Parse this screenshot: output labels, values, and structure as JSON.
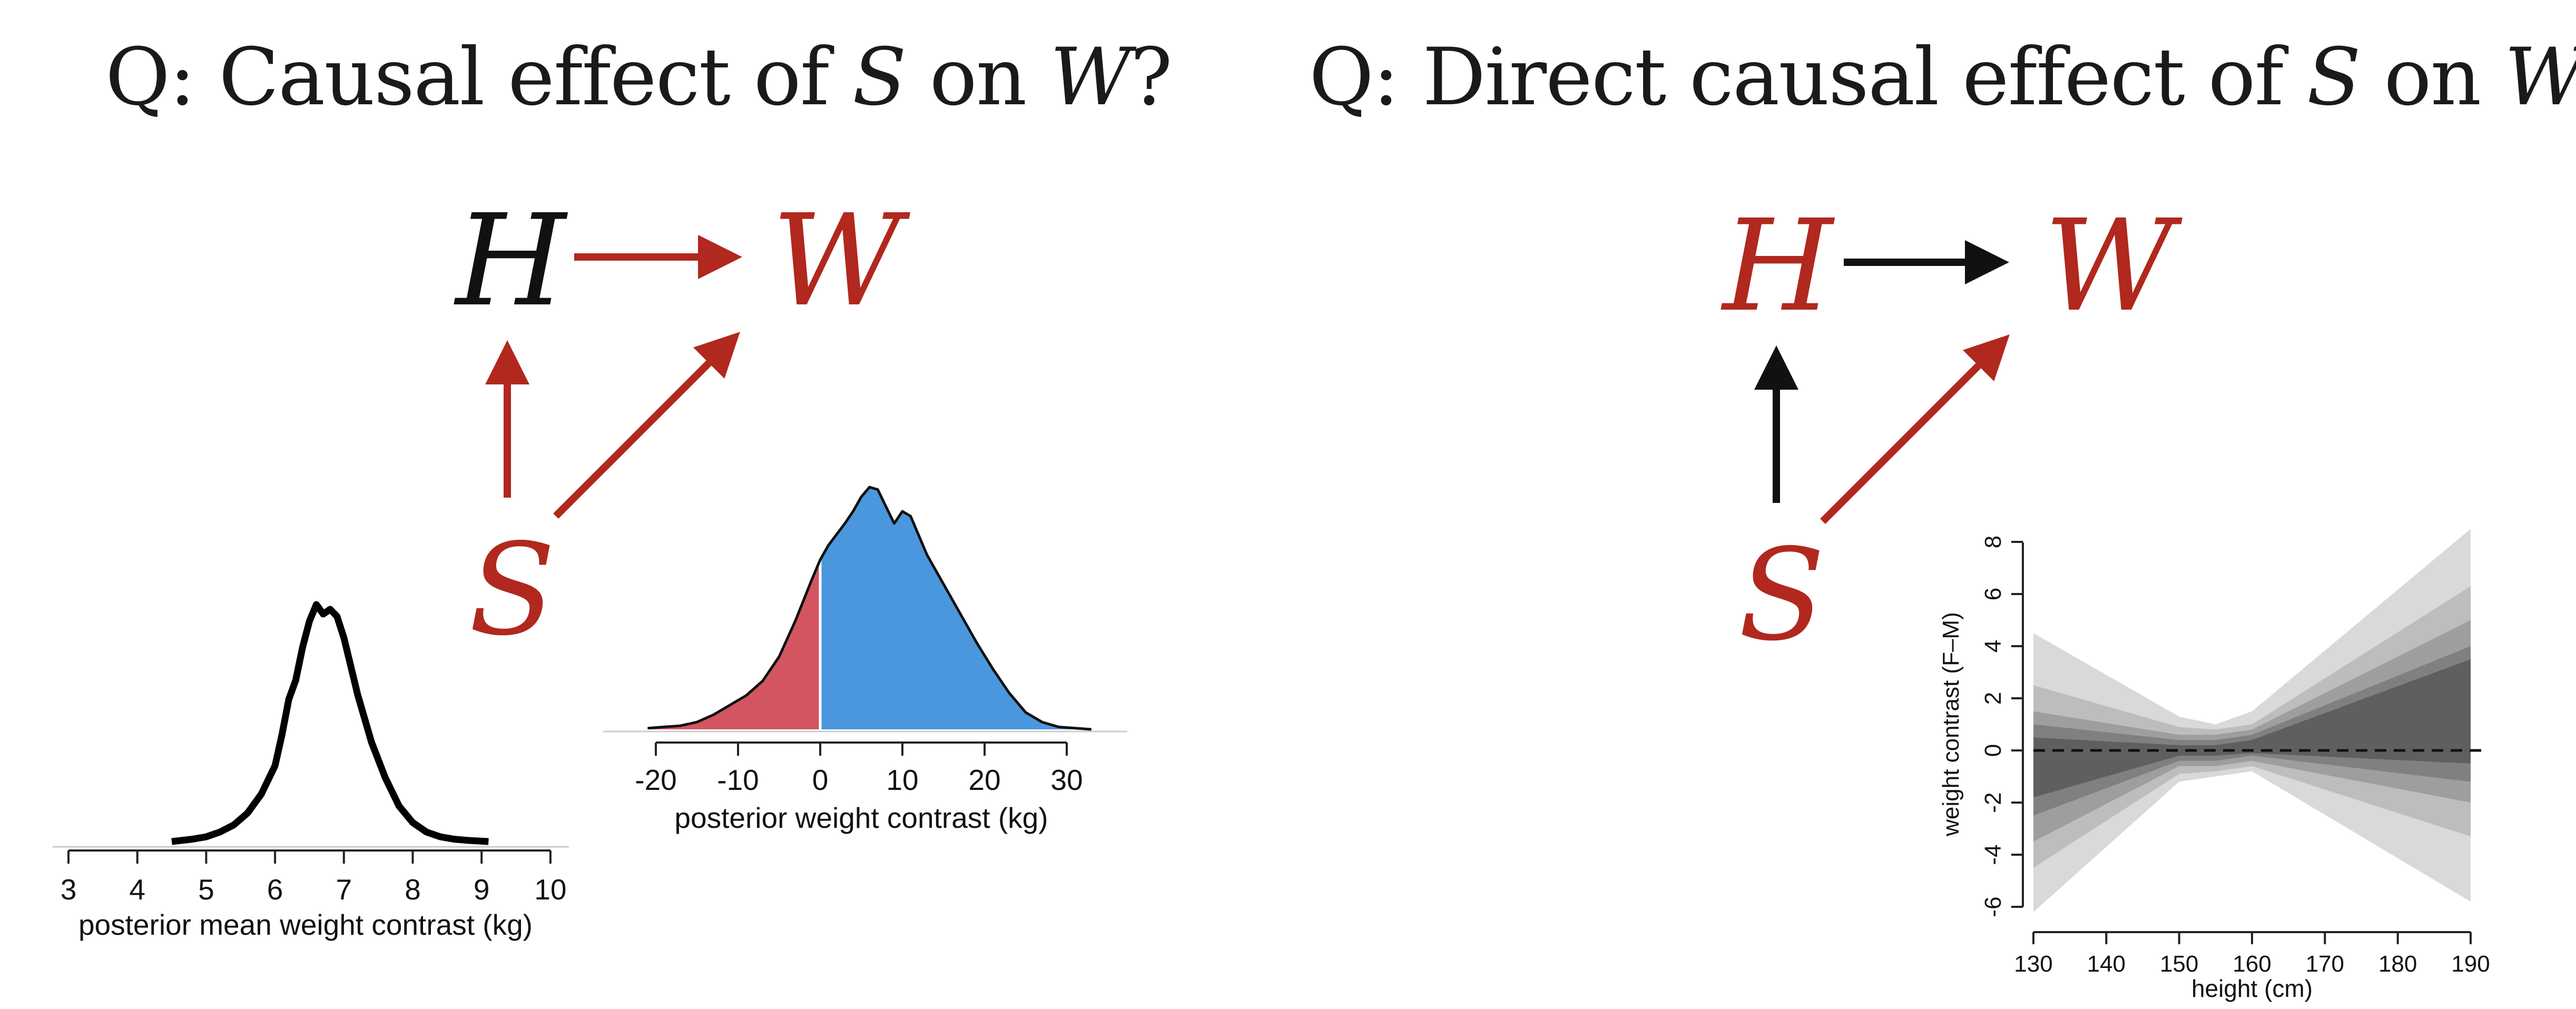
{
  "left_title": {
    "prefix": "Q: Causal effect of ",
    "s": "S",
    "mid": " on ",
    "w": "W",
    "suffix": "?"
  },
  "right_title": {
    "prefix": "Q: Direct causal effect of ",
    "s": "S",
    "mid": " on ",
    "w": "W",
    "suffix": "?"
  },
  "left_dag": {
    "nodes": {
      "H": "H",
      "W": "W",
      "S": "S"
    },
    "node_colors": {
      "H": "#111111",
      "W": "#b0281e",
      "S": "#b0281e"
    },
    "edges": [
      {
        "from": "H",
        "to": "W",
        "color": "#b0281e"
      },
      {
        "from": "S",
        "to": "H",
        "color": "#b0281e"
      },
      {
        "from": "S",
        "to": "W",
        "color": "#b0281e"
      }
    ]
  },
  "right_dag": {
    "nodes": {
      "H": "H",
      "W": "W",
      "S": "S"
    },
    "node_colors": {
      "H": "#b0281e",
      "W": "#b0281e",
      "S": "#b0281e"
    },
    "edges": [
      {
        "from": "H",
        "to": "W",
        "color": "#111111"
      },
      {
        "from": "S",
        "to": "H",
        "color": "#111111"
      },
      {
        "from": "S",
        "to": "W",
        "color": "#b0281e"
      }
    ]
  },
  "chart_data": [
    {
      "type": "line",
      "xlabel": "posterior mean weight contrast (kg)",
      "xticks": [
        3,
        4,
        5,
        6,
        7,
        8,
        9,
        10
      ],
      "xlim": [
        3,
        10
      ],
      "x": [
        4.5,
        4.8,
        5.0,
        5.2,
        5.4,
        5.6,
        5.8,
        6.0,
        6.1,
        6.2,
        6.3,
        6.4,
        6.5,
        6.6,
        6.7,
        6.8,
        6.9,
        7.0,
        7.1,
        7.2,
        7.3,
        7.4,
        7.6,
        7.8,
        8.0,
        8.2,
        8.4,
        8.6,
        8.8,
        9.1
      ],
      "y": [
        0.0,
        0.01,
        0.02,
        0.04,
        0.07,
        0.12,
        0.2,
        0.32,
        0.45,
        0.6,
        0.68,
        0.82,
        0.93,
        1.0,
        0.96,
        0.98,
        0.95,
        0.86,
        0.74,
        0.62,
        0.52,
        0.42,
        0.27,
        0.15,
        0.08,
        0.04,
        0.02,
        0.01,
        0.005,
        0.0
      ],
      "color": "#000000"
    },
    {
      "type": "area",
      "xlabel": "posterior weight contrast (kg)",
      "xticks": [
        -20,
        -10,
        0,
        10,
        20,
        30
      ],
      "xlim": [
        -20,
        30
      ],
      "x": [
        -21,
        -19,
        -17,
        -15,
        -13,
        -11,
        -9,
        -7,
        -5,
        -3,
        -1,
        0,
        1,
        3,
        4,
        5,
        6,
        7,
        8,
        9,
        10,
        11,
        12,
        13,
        15,
        17,
        19,
        21,
        23,
        25,
        27,
        29,
        33
      ],
      "y": [
        0.005,
        0.01,
        0.015,
        0.03,
        0.06,
        0.1,
        0.14,
        0.2,
        0.3,
        0.45,
        0.62,
        0.7,
        0.76,
        0.85,
        0.9,
        0.96,
        1.0,
        0.99,
        0.92,
        0.85,
        0.9,
        0.88,
        0.8,
        0.72,
        0.6,
        0.48,
        0.36,
        0.25,
        0.15,
        0.07,
        0.03,
        0.01,
        0.0
      ],
      "segments": [
        {
          "name": "below zero",
          "range": [
            -21,
            0
          ],
          "color": "#d35561"
        },
        {
          "name": "above zero",
          "range": [
            0,
            33
          ],
          "color": "#4b97dd"
        }
      ]
    },
    {
      "type": "area",
      "xlabel": "height (cm)",
      "ylabel": "weight contrast (F–M)",
      "xticks": [
        130,
        140,
        150,
        160,
        170,
        180,
        190
      ],
      "yticks": [
        -6,
        -4,
        -2,
        0,
        2,
        4,
        6,
        8
      ],
      "xlim": [
        130,
        190
      ],
      "ylim": [
        -6,
        8
      ],
      "reference_line": {
        "y": 0,
        "style": "dashed"
      },
      "x": [
        130,
        150,
        155,
        160,
        190
      ],
      "bands": [
        {
          "level": "outer",
          "upper": [
            4.5,
            1.3,
            1.0,
            1.5,
            8.5
          ],
          "lower": [
            -6.2,
            -1.2,
            -1.0,
            -0.8,
            -5.8
          ],
          "color": "#d9d9d9"
        },
        {
          "level": "2",
          "upper": [
            2.5,
            0.9,
            0.8,
            1.0,
            6.3
          ],
          "lower": [
            -4.5,
            -0.9,
            -0.8,
            -0.6,
            -3.3
          ],
          "color": "#bdbdbd"
        },
        {
          "level": "3",
          "upper": [
            1.5,
            0.6,
            0.6,
            0.8,
            5.0
          ],
          "lower": [
            -3.5,
            -0.6,
            -0.6,
            -0.4,
            -2.0
          ],
          "color": "#9e9e9e"
        },
        {
          "level": "4",
          "upper": [
            1.0,
            0.4,
            0.4,
            0.6,
            4.0
          ],
          "lower": [
            -2.5,
            -0.4,
            -0.4,
            -0.2,
            -1.2
          ],
          "color": "#808080"
        },
        {
          "level": "inner",
          "upper": [
            0.5,
            0.2,
            0.2,
            0.4,
            3.5
          ],
          "lower": [
            -1.8,
            -0.2,
            -0.2,
            -0.1,
            -0.5
          ],
          "color": "#5f5f5f"
        }
      ]
    }
  ]
}
